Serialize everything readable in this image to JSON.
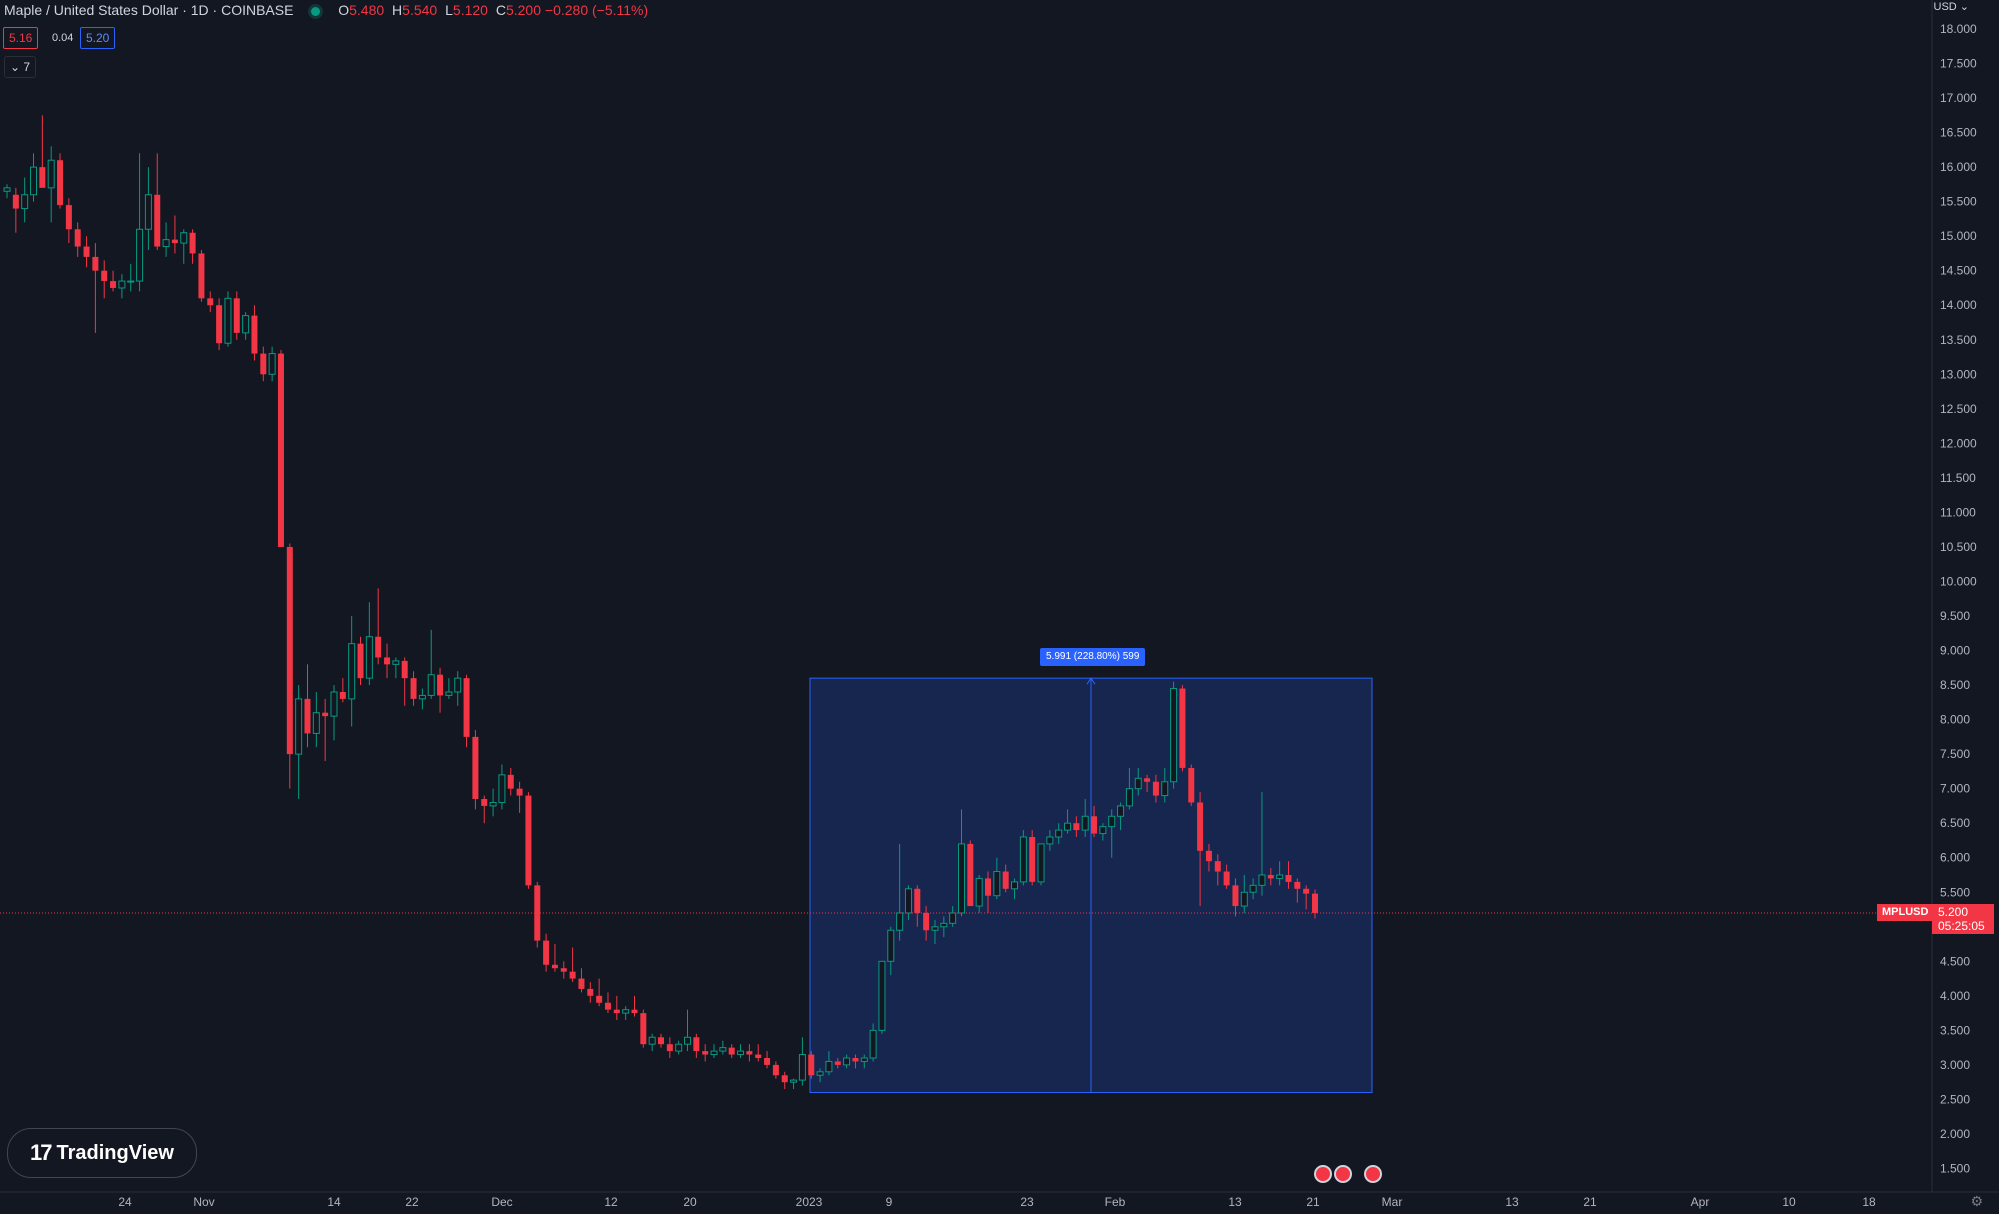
{
  "header": {
    "symbol_line": "Maple / United States Dollar · 1D · COINBASE",
    "ohlc": [
      {
        "k": "O",
        "v": "5.480"
      },
      {
        "k": "H",
        "v": "5.540"
      },
      {
        "k": "L",
        "v": "5.120"
      },
      {
        "k": "C",
        "v": "5.200"
      }
    ],
    "change": "−0.280 (−5.11%)",
    "bid": "5.16",
    "spread": "0.04",
    "ask": "5.20",
    "indicators_toggle": "⌄ 7"
  },
  "axis": {
    "currency": "USD ⌄",
    "y_ticks": [
      "18.000",
      "17.500",
      "17.000",
      "16.500",
      "16.000",
      "15.500",
      "15.000",
      "14.500",
      "14.000",
      "13.500",
      "13.000",
      "12.500",
      "12.000",
      "11.500",
      "11.000",
      "10.500",
      "10.000",
      "9.500",
      "9.000",
      "8.500",
      "8.000",
      "7.500",
      "7.000",
      "6.500",
      "6.000",
      "5.500",
      "5.000",
      "4.500",
      "4.000",
      "3.500",
      "3.000",
      "2.500",
      "2.000",
      "1.500"
    ],
    "x_ticks": [
      "24",
      "Nov",
      "14",
      "22",
      "Dec",
      "12",
      "20",
      "2023",
      "9",
      "23",
      "Feb",
      "13",
      "21",
      "Mar",
      "13",
      "21",
      "Apr",
      "10",
      "18"
    ]
  },
  "price_tag": {
    "ticker": "MPLUSD",
    "last": "5.200",
    "countdown": "05:25:05"
  },
  "measure": {
    "label": "5.991 (228.80%) 599"
  },
  "logo": {
    "text": "TradingView",
    "icon": "tradingview-logo-icon"
  },
  "colors": {
    "up": "#089981",
    "down": "#f23645",
    "bg": "#131722",
    "measure": "#2962ff"
  },
  "chart_data": {
    "type": "candlestick",
    "title": "Maple / United States Dollar · 1D · COINBASE",
    "ylim": [
      1.35,
      18.3
    ],
    "y_scale": "linear",
    "grid": false,
    "candles_ohlc": [
      [
        15.65,
        15.75,
        15.55,
        15.7
      ],
      [
        15.6,
        15.7,
        15.05,
        15.4
      ],
      [
        15.4,
        15.85,
        15.2,
        15.6
      ],
      [
        15.6,
        16.2,
        15.5,
        16.0
      ],
      [
        16.0,
        16.75,
        15.9,
        15.7
      ],
      [
        15.7,
        16.3,
        15.2,
        16.1
      ],
      [
        16.1,
        16.2,
        15.4,
        15.45
      ],
      [
        15.45,
        15.55,
        14.9,
        15.1
      ],
      [
        15.1,
        15.2,
        14.7,
        14.85
      ],
      [
        14.85,
        15.0,
        14.55,
        14.7
      ],
      [
        14.7,
        14.9,
        13.6,
        14.5
      ],
      [
        14.5,
        14.65,
        14.1,
        14.35
      ],
      [
        14.35,
        14.5,
        14.2,
        14.25
      ],
      [
        14.25,
        14.45,
        14.1,
        14.35
      ],
      [
        14.35,
        14.6,
        14.2,
        14.35
      ],
      [
        14.35,
        16.2,
        14.2,
        15.1
      ],
      [
        15.1,
        16.0,
        14.8,
        15.6
      ],
      [
        15.6,
        16.2,
        14.8,
        14.85
      ],
      [
        14.85,
        15.2,
        14.7,
        14.95
      ],
      [
        14.95,
        15.3,
        14.75,
        14.9
      ],
      [
        14.9,
        15.1,
        14.6,
        15.05
      ],
      [
        15.05,
        15.1,
        14.6,
        14.75
      ],
      [
        14.75,
        14.8,
        14.05,
        14.1
      ],
      [
        14.1,
        14.2,
        13.9,
        14.0
      ],
      [
        14.0,
        14.1,
        13.35,
        13.45
      ],
      [
        13.45,
        14.2,
        13.4,
        14.1
      ],
      [
        14.1,
        14.2,
        13.5,
        13.6
      ],
      [
        13.6,
        13.9,
        13.5,
        13.85
      ],
      [
        13.85,
        14.0,
        13.2,
        13.3
      ],
      [
        13.3,
        13.4,
        12.9,
        13.0
      ],
      [
        13.0,
        13.4,
        12.9,
        13.3
      ],
      [
        13.3,
        13.35,
        10.5,
        10.5
      ],
      [
        10.5,
        10.55,
        7.0,
        7.5
      ],
      [
        7.5,
        8.5,
        6.85,
        8.3
      ],
      [
        8.3,
        8.8,
        7.6,
        7.8
      ],
      [
        7.8,
        8.4,
        7.6,
        8.1
      ],
      [
        8.1,
        8.3,
        7.4,
        8.05
      ],
      [
        8.05,
        8.5,
        7.7,
        8.4
      ],
      [
        8.4,
        8.6,
        8.25,
        8.3
      ],
      [
        8.3,
        9.5,
        7.9,
        9.1
      ],
      [
        9.1,
        9.2,
        8.5,
        8.6
      ],
      [
        8.6,
        9.7,
        8.5,
        9.2
      ],
      [
        9.2,
        9.9,
        8.8,
        8.9
      ],
      [
        8.9,
        9.1,
        8.6,
        8.8
      ],
      [
        8.8,
        8.9,
        8.6,
        8.85
      ],
      [
        8.85,
        8.9,
        8.2,
        8.6
      ],
      [
        8.6,
        8.7,
        8.2,
        8.3
      ],
      [
        8.3,
        8.45,
        8.15,
        8.35
      ],
      [
        8.35,
        9.3,
        8.3,
        8.65
      ],
      [
        8.65,
        8.75,
        8.1,
        8.35
      ],
      [
        8.35,
        8.6,
        8.3,
        8.4
      ],
      [
        8.4,
        8.7,
        8.2,
        8.6
      ],
      [
        8.6,
        8.65,
        7.6,
        7.75
      ],
      [
        7.75,
        7.85,
        6.7,
        6.85
      ],
      [
        6.85,
        6.9,
        6.5,
        6.75
      ],
      [
        6.75,
        7.0,
        6.6,
        6.8
      ],
      [
        6.8,
        7.35,
        6.7,
        7.2
      ],
      [
        7.2,
        7.3,
        6.9,
        7.0
      ],
      [
        7.0,
        7.1,
        6.65,
        6.9
      ],
      [
        6.9,
        6.95,
        5.55,
        5.6
      ],
      [
        5.6,
        5.65,
        4.7,
        4.8
      ],
      [
        4.8,
        4.9,
        4.35,
        4.45
      ],
      [
        4.45,
        4.75,
        4.35,
        4.4
      ],
      [
        4.4,
        4.5,
        4.25,
        4.35
      ],
      [
        4.35,
        4.7,
        4.2,
        4.25
      ],
      [
        4.25,
        4.4,
        4.05,
        4.1
      ],
      [
        4.1,
        4.2,
        3.9,
        4.0
      ],
      [
        4.0,
        4.25,
        3.85,
        3.9
      ],
      [
        3.9,
        4.05,
        3.75,
        3.8
      ],
      [
        3.8,
        4.0,
        3.65,
        3.75
      ],
      [
        3.75,
        3.85,
        3.65,
        3.8
      ],
      [
        3.8,
        4.0,
        3.7,
        3.75
      ],
      [
        3.75,
        3.8,
        3.25,
        3.3
      ],
      [
        3.3,
        3.45,
        3.2,
        3.4
      ],
      [
        3.4,
        3.45,
        3.25,
        3.3
      ],
      [
        3.3,
        3.4,
        3.1,
        3.2
      ],
      [
        3.2,
        3.35,
        3.15,
        3.3
      ],
      [
        3.3,
        3.8,
        3.2,
        3.4
      ],
      [
        3.4,
        3.45,
        3.1,
        3.2
      ],
      [
        3.2,
        3.3,
        3.05,
        3.15
      ],
      [
        3.15,
        3.3,
        3.1,
        3.2
      ],
      [
        3.2,
        3.35,
        3.15,
        3.25
      ],
      [
        3.25,
        3.3,
        3.1,
        3.15
      ],
      [
        3.15,
        3.3,
        3.1,
        3.2
      ],
      [
        3.2,
        3.3,
        3.05,
        3.15
      ],
      [
        3.15,
        3.3,
        3.05,
        3.1
      ],
      [
        3.1,
        3.2,
        2.95,
        3.0
      ],
      [
        3.0,
        3.05,
        2.8,
        2.85
      ],
      [
        2.85,
        2.9,
        2.65,
        2.75
      ],
      [
        2.75,
        2.8,
        2.65,
        2.78
      ],
      [
        2.78,
        3.4,
        2.7,
        3.15
      ],
      [
        3.15,
        3.2,
        2.8,
        2.85
      ],
      [
        2.85,
        2.95,
        2.75,
        2.9
      ],
      [
        2.9,
        3.2,
        2.85,
        3.05
      ],
      [
        3.05,
        3.1,
        2.95,
        3.0
      ],
      [
        3.0,
        3.15,
        2.95,
        3.1
      ],
      [
        3.1,
        3.15,
        2.95,
        3.05
      ],
      [
        3.05,
        3.15,
        2.95,
        3.1
      ],
      [
        3.1,
        3.6,
        3.05,
        3.5
      ],
      [
        3.5,
        4.5,
        3.45,
        4.5
      ],
      [
        4.5,
        5.0,
        4.3,
        4.95
      ],
      [
        4.95,
        6.2,
        4.8,
        5.2
      ],
      [
        5.2,
        5.6,
        5.1,
        5.55
      ],
      [
        5.55,
        5.6,
        5.0,
        5.2
      ],
      [
        5.2,
        5.3,
        4.8,
        4.95
      ],
      [
        4.95,
        5.1,
        4.75,
        5.0
      ],
      [
        5.0,
        5.15,
        4.85,
        5.05
      ],
      [
        5.05,
        5.3,
        5.0,
        5.2
      ],
      [
        5.2,
        6.7,
        5.15,
        6.2
      ],
      [
        6.2,
        6.25,
        5.3,
        5.3
      ],
      [
        5.3,
        5.75,
        5.2,
        5.7
      ],
      [
        5.7,
        5.8,
        5.2,
        5.45
      ],
      [
        5.45,
        6.0,
        5.4,
        5.8
      ],
      [
        5.8,
        5.9,
        5.5,
        5.55
      ],
      [
        5.55,
        5.7,
        5.4,
        5.65
      ],
      [
        5.65,
        6.4,
        5.6,
        6.3
      ],
      [
        6.3,
        6.4,
        5.6,
        5.65
      ],
      [
        5.65,
        6.2,
        5.6,
        6.2
      ],
      [
        6.2,
        6.4,
        6.1,
        6.3
      ],
      [
        6.3,
        6.5,
        6.2,
        6.4
      ],
      [
        6.4,
        6.7,
        6.35,
        6.5
      ],
      [
        6.5,
        6.6,
        6.3,
        6.4
      ],
      [
        6.4,
        6.85,
        6.3,
        6.6
      ],
      [
        6.6,
        6.75,
        6.3,
        6.35
      ],
      [
        6.35,
        6.5,
        6.25,
        6.45
      ],
      [
        6.45,
        6.7,
        6.0,
        6.6
      ],
      [
        6.6,
        6.8,
        6.4,
        6.75
      ],
      [
        6.75,
        7.3,
        6.7,
        7.0
      ],
      [
        7.0,
        7.3,
        6.9,
        7.15
      ],
      [
        7.15,
        7.2,
        6.95,
        7.1
      ],
      [
        7.1,
        7.2,
        6.8,
        6.9
      ],
      [
        6.9,
        7.3,
        6.8,
        7.1
      ],
      [
        7.1,
        8.55,
        7.0,
        8.45
      ],
      [
        8.45,
        8.5,
        7.25,
        7.3
      ],
      [
        7.3,
        7.35,
        6.75,
        6.8
      ],
      [
        6.8,
        6.95,
        5.3,
        6.1
      ],
      [
        6.1,
        6.2,
        5.8,
        5.95
      ],
      [
        5.95,
        6.05,
        5.6,
        5.8
      ],
      [
        5.8,
        5.9,
        5.55,
        5.6
      ],
      [
        5.6,
        5.7,
        5.15,
        5.3
      ],
      [
        5.3,
        5.75,
        5.2,
        5.5
      ],
      [
        5.5,
        5.7,
        5.4,
        5.6
      ],
      [
        5.6,
        6.95,
        5.45,
        5.75
      ],
      [
        5.75,
        5.85,
        5.6,
        5.7
      ],
      [
        5.7,
        5.95,
        5.6,
        5.75
      ],
      [
        5.75,
        5.95,
        5.55,
        5.65
      ],
      [
        5.65,
        5.7,
        5.35,
        5.55
      ],
      [
        5.55,
        5.6,
        5.25,
        5.48
      ],
      [
        5.48,
        5.54,
        5.12,
        5.2
      ]
    ],
    "measure_range": {
      "from": 2.6,
      "to": 8.6
    },
    "last_price": 5.2
  }
}
